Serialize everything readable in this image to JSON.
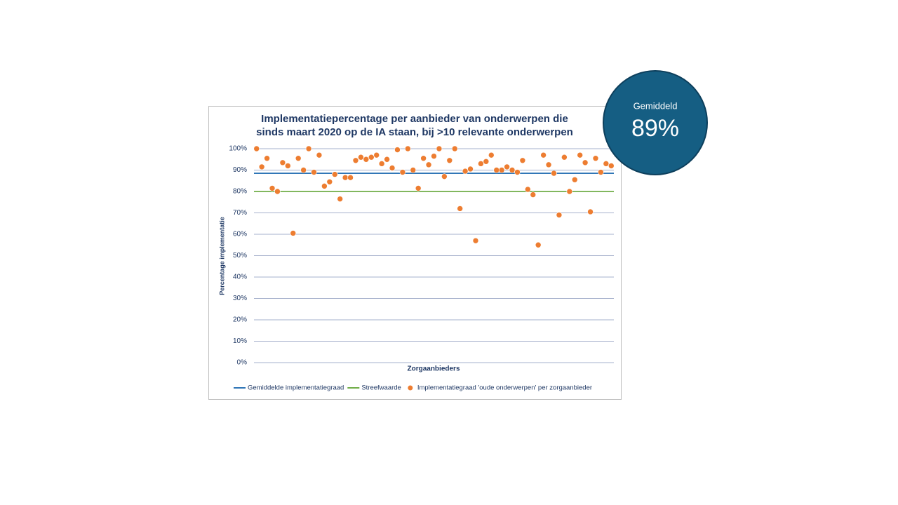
{
  "chart_data": {
    "type": "scatter",
    "title": [
      "Implementatiepercentage per aanbieder van onderwerpen die",
      "sinds maart 2020 op de IA staan, bij >10 relevante onderwerpen"
    ],
    "x_label": "Zorgaanbieders",
    "y_label": "Percentage implementatie",
    "ylim": [
      0,
      100
    ],
    "yticks": [
      {
        "value": 0,
        "label": "0%"
      },
      {
        "value": 10,
        "label": "10%"
      },
      {
        "value": 20,
        "label": "20%"
      },
      {
        "value": 30,
        "label": "30%"
      },
      {
        "value": 40,
        "label": "40%"
      },
      {
        "value": 50,
        "label": "50%"
      },
      {
        "value": 60,
        "label": "60%"
      },
      {
        "value": 70,
        "label": "70%"
      },
      {
        "value": 80,
        "label": "80%"
      },
      {
        "value": 90,
        "label": "90%"
      },
      {
        "value": 100,
        "label": "100%"
      }
    ],
    "grid": true,
    "legend": "bottom",
    "series": [
      {
        "name": "Gemiddelde implementatiegraad",
        "type": "hline",
        "color": "#2e75b6",
        "value": 88.5
      },
      {
        "name": "Streefwaarde",
        "type": "hline",
        "color": "#70ad47",
        "value": 80
      },
      {
        "name": "Implementatiegraad 'oude onderwerpen' per zorgaanbieder",
        "type": "scatter",
        "color": "#ed7d31",
        "values": [
          100,
          91.5,
          95.5,
          81.5,
          80,
          93.5,
          92,
          60.5,
          95.5,
          90,
          100,
          89,
          97,
          82.5,
          84.5,
          88,
          76.5,
          86.5,
          86.5,
          94.5,
          96,
          95,
          96,
          97,
          93,
          95,
          91,
          99.5,
          89,
          100,
          90,
          81.5,
          95.5,
          92.5,
          96.5,
          100,
          87,
          94.5,
          100,
          72,
          89.5,
          90.5,
          57,
          93,
          94,
          97,
          90,
          90,
          91.5,
          90,
          89,
          94.5,
          81,
          78.5,
          55,
          97,
          92.5,
          88.5,
          69,
          96,
          80,
          85.5,
          97,
          93.5,
          70.5,
          95.5,
          89,
          93,
          92
        ]
      }
    ]
  },
  "badge": {
    "label": "Gemiddeld",
    "value": "89%"
  }
}
